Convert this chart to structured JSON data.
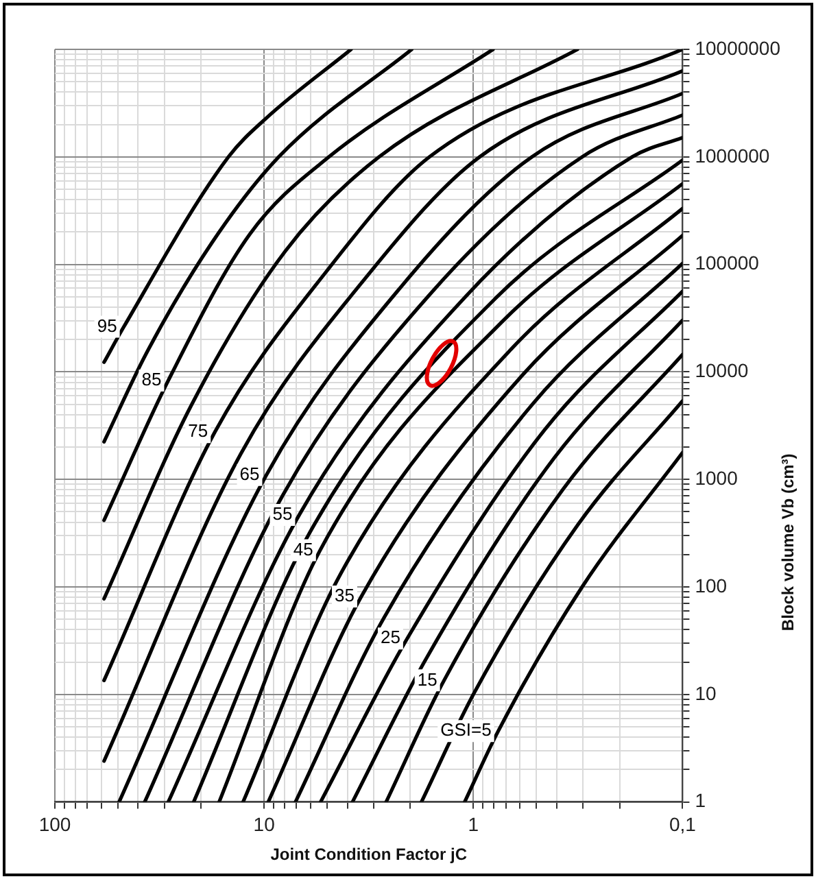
{
  "chart_data": {
    "type": "line",
    "xlabel": "Joint Condition Factor jC",
    "ylabel": "Block volume Vb (cm³)",
    "log": "xy",
    "grid": true,
    "legend": false,
    "marker": "none",
    "line_style": "solid",
    "xlim": [
      100,
      0.1
    ],
    "xticks": [
      100,
      {
        "value": 90,
        "label": null
      },
      {
        "value": 80,
        "label": null
      },
      {
        "value": 70,
        "label": null
      },
      {
        "value": 60,
        "label": null
      },
      {
        "value": 50,
        "label": null
      },
      {
        "value": 40,
        "label": null
      },
      {
        "value": 30,
        "label": null
      },
      {
        "value": 20,
        "label": null
      },
      10,
      {
        "value": 9,
        "label": null
      },
      {
        "value": 8,
        "label": null
      },
      {
        "value": 7,
        "label": null
      },
      {
        "value": 6,
        "label": null
      },
      {
        "value": 5,
        "label": null
      },
      {
        "value": 4,
        "label": null
      },
      {
        "value": 3,
        "label": null
      },
      {
        "value": 2,
        "label": null
      },
      1,
      {
        "value": 0.9,
        "label": null
      },
      {
        "value": 0.8,
        "label": null
      },
      {
        "value": 0.7,
        "label": null
      },
      {
        "value": 0.6,
        "label": null
      },
      {
        "value": 0.5,
        "label": null
      },
      {
        "value": 0.4,
        "label": null
      },
      {
        "value": 0.3,
        "label": null
      },
      {
        "value": 0.2,
        "label": null
      },
      {
        "value": 0.1,
        "label": "0,1"
      }
    ],
    "ylim": [
      1,
      10000000
    ],
    "yticks": [
      1,
      {
        "value": 2,
        "label": null
      },
      {
        "value": 3,
        "label": null
      },
      {
        "value": 4,
        "label": null
      },
      {
        "value": 5,
        "label": null
      },
      {
        "value": 6,
        "label": null
      },
      {
        "value": 7,
        "label": null
      },
      {
        "value": 8,
        "label": null
      },
      {
        "value": 9,
        "label": null
      },
      10,
      {
        "value": 20,
        "label": null
      },
      {
        "value": 30,
        "label": null
      },
      {
        "value": 40,
        "label": null
      },
      {
        "value": 50,
        "label": null
      },
      {
        "value": 60,
        "label": null
      },
      {
        "value": 70,
        "label": null
      },
      {
        "value": 80,
        "label": null
      },
      {
        "value": 90,
        "label": null
      },
      100,
      {
        "value": 200,
        "label": null
      },
      {
        "value": 300,
        "label": null
      },
      {
        "value": 400,
        "label": null
      },
      {
        "value": 500,
        "label": null
      },
      {
        "value": 600,
        "label": null
      },
      {
        "value": 700,
        "label": null
      },
      {
        "value": 800,
        "label": null
      },
      {
        "value": 900,
        "label": null
      },
      1000,
      {
        "value": 2000,
        "label": null
      },
      {
        "value": 3000,
        "label": null
      },
      {
        "value": 4000,
        "label": null
      },
      {
        "value": 5000,
        "label": null
      },
      {
        "value": 6000,
        "label": null
      },
      {
        "value": 7000,
        "label": null
      },
      {
        "value": 8000,
        "label": null
      },
      {
        "value": 9000,
        "label": null
      },
      10000,
      {
        "value": 20000,
        "label": null
      },
      {
        "value": 30000,
        "label": null
      },
      {
        "value": 40000,
        "label": null
      },
      {
        "value": 50000,
        "label": null
      },
      {
        "value": 60000,
        "label": null
      },
      {
        "value": 70000,
        "label": null
      },
      {
        "value": 80000,
        "label": null
      },
      {
        "value": 90000,
        "label": null
      },
      100000,
      {
        "value": 200000,
        "label": null
      },
      {
        "value": 300000,
        "label": null
      },
      {
        "value": 400000,
        "label": null
      },
      {
        "value": 500000,
        "label": null
      },
      {
        "value": 600000,
        "label": null
      },
      {
        "value": 700000,
        "label": null
      },
      {
        "value": 800000,
        "label": null
      },
      {
        "value": 900000,
        "label": null
      },
      1000000,
      {
        "value": 2000000,
        "label": null
      },
      {
        "value": 3000000,
        "label": null
      },
      {
        "value": 4000000,
        "label": null
      },
      {
        "value": 5000000,
        "label": null
      },
      {
        "value": 6000000,
        "label": null
      },
      {
        "value": 7000000,
        "label": null
      },
      {
        "value": 8000000,
        "label": null
      },
      {
        "value": 9000000,
        "label": null
      },
      10000000
    ],
    "series": [
      {
        "name": "95",
        "color": "#000000",
        "x": [
          58.2,
          46.8,
          14.8,
          9.77,
          3.84
        ],
        "values": [
          12300,
          26300,
          1000000,
          2290000,
          10000000
        ]
      },
      {
        "color": "#000000",
        "x": [
          58.2,
          36.6,
          17.8,
          8.51,
          1.97
        ],
        "values": [
          2240,
          14800,
          158000,
          1000000,
          10000000
        ]
      },
      {
        "name": "85",
        "color": "#000000",
        "x": [
          58.2,
          28.7,
          11.7,
          4.9,
          0.805
        ],
        "values": [
          417,
          8320,
          191000,
          1000000,
          10000000
        ]
      },
      {
        "color": "#000000",
        "x": [
          58.2,
          22.4,
          7.94,
          2.82,
          0.318
        ],
        "values": [
          77.6,
          4790,
          132000,
          1000000,
          10000000
        ]
      },
      {
        "name": "75",
        "color": "#000000",
        "x": [
          58.2,
          17.2,
          5.01,
          1.62,
          0.1
        ],
        "values": [
          13.5,
          2750,
          87100,
          1000000,
          10000000
        ]
      },
      {
        "color": "#000000",
        "x": [
          58.2,
          12.9,
          3.16,
          0.933,
          0.1
        ],
        "values": [
          2.4,
          1740,
          81300,
          1000000,
          6310000
        ]
      },
      {
        "name": "65",
        "color": "#000000",
        "x": [
          49.3,
          9.75,
          2.24,
          0.525,
          0.1
        ],
        "values": [
          1,
          1100,
          60300,
          1000000,
          3890000
        ]
      },
      {
        "color": "#000000",
        "x": [
          37.2,
          8.13,
          1.58,
          0.302,
          0.1
        ],
        "values": [
          1,
          716,
          55000,
          1000000,
          2450000
        ]
      },
      {
        "name": "55",
        "color": "#000000",
        "x": [
          28.7,
          6.79,
          1.09,
          0.174,
          0.1
        ],
        "values": [
          1,
          468,
          50100,
          1000000,
          1510000
        ]
      },
      {
        "color": "#000000",
        "x": [
          21.7,
          6.05,
          0.778,
          0.1
        ],
        "values": [
          1,
          320,
          49000,
          933000
        ]
      },
      {
        "name": "45",
        "color": "#000000",
        "x": [
          16.4,
          5.4,
          0.735,
          0.1
        ],
        "values": [
          1,
          219,
          28800,
          562000
        ]
      },
      {
        "color": "#000000",
        "x": [
          12.6,
          4.3,
          0.661,
          0.1
        ],
        "values": [
          1,
          133,
          16200,
          331000
        ]
      },
      {
        "name": "35",
        "color": "#000000",
        "x": [
          9.55,
          3.43,
          0.589,
          0.1
        ],
        "values": [
          1,
          81.3,
          9120,
          186000
        ]
      },
      {
        "color": "#000000",
        "x": [
          7.08,
          2.67,
          0.516,
          0.1
        ],
        "values": [
          1,
          51.9,
          5130,
          102000
        ]
      },
      {
        "name": "25",
        "color": "#000000",
        "x": [
          5.37,
          2.07,
          0.457,
          0.1
        ],
        "values": [
          1,
          33.1,
          2880,
          56200
        ]
      },
      {
        "color": "#000000",
        "x": [
          3.78,
          1.69,
          0.411,
          0.1
        ],
        "values": [
          1,
          21.1,
          1580,
          30200
        ]
      },
      {
        "name": "15",
        "color": "#000000",
        "x": [
          2.61,
          1.38,
          0.372,
          0.1
        ],
        "values": [
          1,
          13.5,
          813,
          14500
        ]
      },
      {
        "color": "#000000",
        "x": [
          1.77,
          1,
          0.316,
          0.1
        ],
        "values": [
          1,
          10,
          380,
          5370
        ]
      },
      {
        "name": "GSI=5",
        "color": "#000000",
        "x": [
          1.1,
          0.76,
          0.302,
          0.1
        ],
        "values": [
          1,
          4.57,
          100,
          1780
        ]
      }
    ]
  }
}
